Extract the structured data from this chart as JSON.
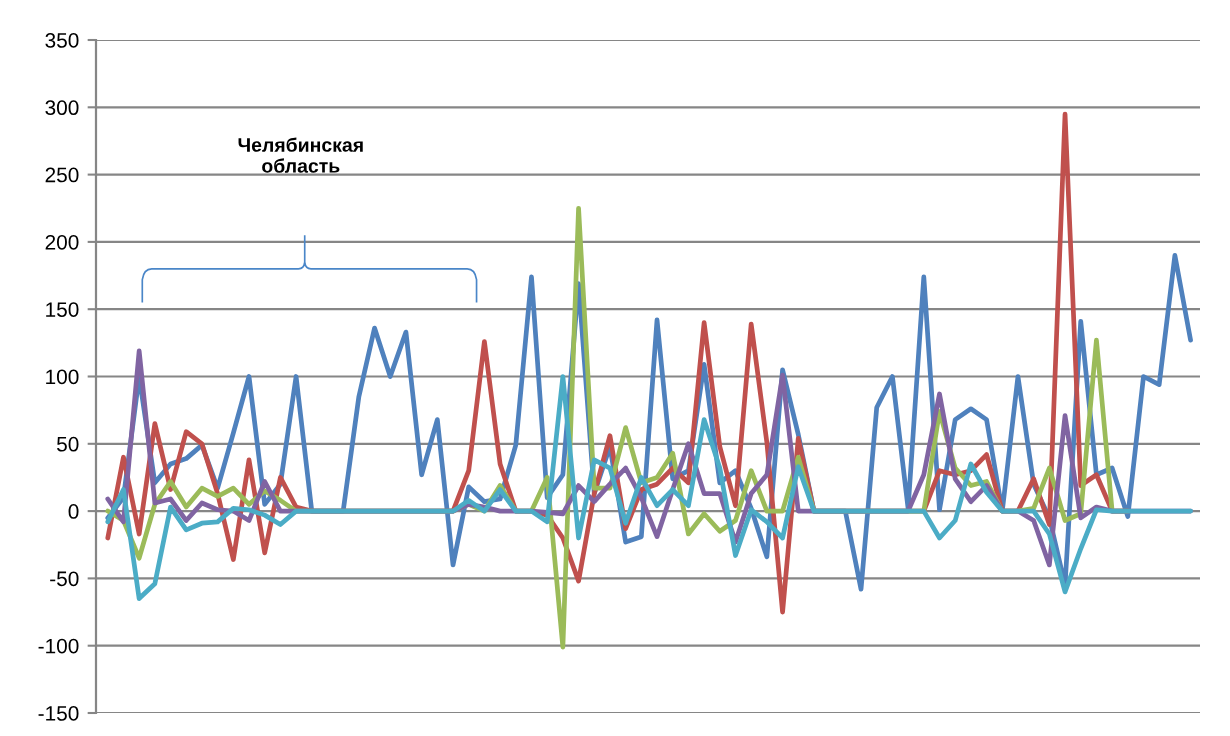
{
  "chart_data": {
    "type": "line",
    "categories": [
      null,
      null,
      null,
      null,
      null,
      null,
      null,
      null,
      null,
      null,
      null,
      null,
      null,
      null,
      null,
      null,
      null,
      null,
      null,
      null,
      null,
      null,
      null,
      null,
      null,
      null,
      null,
      null,
      null,
      null,
      null,
      null,
      null,
      null,
      null,
      null,
      null,
      null,
      null,
      null,
      null,
      null,
      null,
      null,
      null,
      null,
      null,
      null,
      null,
      null,
      null,
      null,
      null,
      null,
      null,
      null,
      null,
      null,
      null,
      null,
      null,
      null,
      null,
      null,
      null,
      null,
      null,
      null,
      null,
      null
    ],
    "series": [
      {
        "color": "#4f81bd",
        "values": [
          -5,
          10,
          100,
          21,
          35,
          39,
          49,
          17,
          58,
          100,
          5,
          20,
          100,
          0,
          0,
          0,
          85,
          136,
          100,
          133,
          27,
          68,
          -40,
          18,
          7,
          9,
          49,
          174,
          10,
          27,
          169,
          13,
          48,
          -23,
          -19,
          142,
          24,
          30,
          109,
          21,
          30,
          2,
          -34,
          105,
          57,
          0,
          0,
          0,
          -58,
          77,
          100,
          2,
          174,
          1,
          68,
          76,
          68,
          0,
          100,
          20,
          -5,
          -55,
          141,
          27,
          32,
          -4,
          100,
          94,
          190,
          127
        ]
      },
      {
        "color": "#c0504d",
        "values": [
          -20,
          40,
          -17,
          65,
          16,
          59,
          50,
          13,
          -36,
          38,
          -31,
          25,
          3,
          0,
          0,
          0,
          0,
          0,
          0,
          0,
          0,
          0,
          0,
          30,
          126,
          35,
          0,
          0,
          -3,
          -20,
          -52,
          13,
          56,
          -13,
          16,
          20,
          32,
          21,
          140,
          48,
          4,
          139,
          51,
          -75,
          54,
          0,
          0,
          0,
          0,
          0,
          0,
          0,
          0,
          30,
          27,
          30,
          42,
          0,
          0,
          24,
          -10,
          295,
          19,
          27,
          0,
          0,
          null,
          null,
          null,
          null
        ]
      },
      {
        "color": "#9bbb59",
        "values": [
          0,
          -7,
          -35,
          5,
          22,
          3,
          17,
          11,
          17,
          5,
          15,
          8,
          0,
          0,
          0,
          0,
          0,
          0,
          0,
          0,
          0,
          0,
          0,
          5,
          0,
          19,
          0,
          0,
          25,
          -101,
          225,
          17,
          17,
          62,
          21,
          25,
          43,
          -17,
          -2,
          -15,
          -7,
          30,
          0,
          0,
          40,
          0,
          0,
          0,
          0,
          0,
          0,
          0,
          0,
          74,
          32,
          19,
          22,
          0,
          0,
          2,
          32,
          -7,
          -2,
          127,
          0,
          0,
          null,
          null,
          null,
          null
        ]
      },
      {
        "color": "#8064a2",
        "values": [
          9,
          -8,
          119,
          6,
          9,
          -7,
          6,
          1,
          0,
          -7,
          22,
          0,
          0,
          0,
          0,
          0,
          0,
          0,
          0,
          0,
          0,
          0,
          0,
          5,
          3,
          0,
          0,
          0,
          -1,
          -2,
          19,
          7,
          20,
          32,
          10,
          -19,
          16,
          50,
          13,
          13,
          -23,
          13,
          27,
          101,
          0,
          0,
          0,
          0,
          0,
          0,
          0,
          0,
          27,
          87,
          24,
          7,
          19,
          0,
          0,
          -7,
          -40,
          71,
          -5,
          3,
          0,
          0,
          0,
          0,
          0,
          0
        ]
      },
      {
        "color": "#4bacc6",
        "values": [
          -8,
          16,
          -65,
          -54,
          3,
          -14,
          -9,
          -8,
          2,
          1,
          -3,
          -10,
          0,
          0,
          0,
          0,
          0,
          0,
          0,
          0,
          0,
          0,
          0,
          8,
          0,
          16,
          0,
          0,
          -8,
          100,
          -20,
          38,
          32,
          -9,
          25,
          4,
          16,
          4,
          68,
          32,
          -33,
          1,
          -8,
          -20,
          33,
          0,
          0,
          0,
          0,
          0,
          0,
          0,
          0,
          -20,
          -7,
          35,
          14,
          0,
          0,
          0,
          -17,
          -60,
          -28,
          1,
          0,
          0,
          0,
          0,
          0,
          0
        ]
      }
    ],
    "ylim": [
      -150,
      350
    ],
    "yticks": [
      -150,
      -100,
      -50,
      0,
      50,
      100,
      150,
      200,
      250,
      300,
      350
    ],
    "grid": "y",
    "legend": false,
    "marker": "none",
    "line_style": "solid",
    "annotations": [
      "Челябинская\nобласть"
    ]
  }
}
